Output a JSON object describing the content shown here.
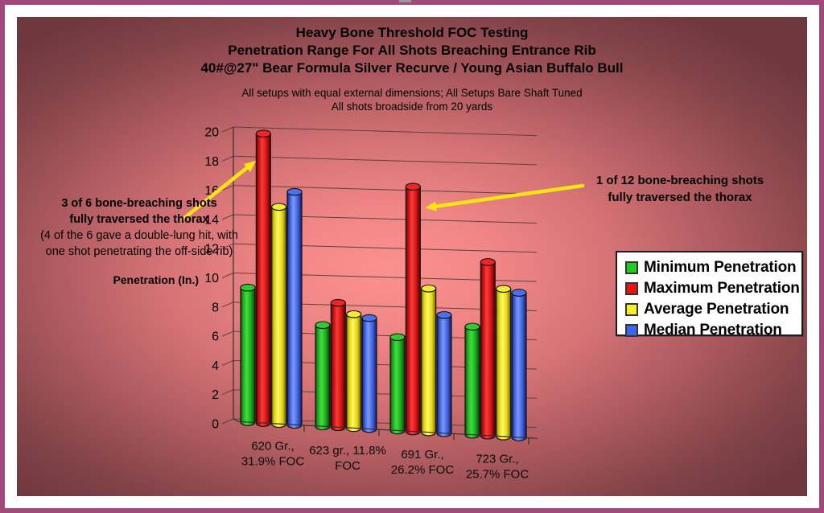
{
  "title": {
    "line1": "Heavy Bone Threshold FOC Testing",
    "line2": "Penetration Range For All Shots Breaching Entrance Rib",
    "line3": "40#@27\" Bear Formula Silver Recurve / Young Asian Buffalo Bull"
  },
  "subtitle": {
    "line1": "All setups with equal external dimensions; All Setups Bare Shaft Tuned",
    "line2": "All shots broadside from 20 yards"
  },
  "annotations": {
    "left": {
      "bold_line1": "3 of 6 bone-breaching shots",
      "bold_line2": "fully traversed the thorax",
      "normal_line1": "(4 of the 6 gave a double-lung hit, with",
      "normal_line2": "one shot penetrating the off-side rib)"
    },
    "right": {
      "line1": "1 of 12 bone-breaching shots",
      "line2": "fully traversed the thorax"
    }
  },
  "colors": {
    "arrow": "#ffe612",
    "frame_border": "#a1497b",
    "background_center": "#fb918f",
    "background_edge": "#6f383e",
    "grid_line": "#5c4242"
  },
  "chart_data": {
    "type": "bar",
    "style": "3d-cylinder",
    "title": "Heavy Bone Threshold FOC Testing",
    "categories": [
      [
        "620 Gr.,",
        "31.9% FOC"
      ],
      [
        "623 gr., 11.8%",
        "FOC"
      ],
      [
        "691 Gr.,",
        "26.2% FOC"
      ],
      [
        "723 Gr.,",
        "25.7% FOC"
      ]
    ],
    "series": [
      {
        "name": "Minimum Penetration",
        "swatch": "#22cc22",
        "values": [
          9.0,
          6.5,
          5.75,
          6.5
        ]
      },
      {
        "name": "Maximum Penetration",
        "swatch": "#ee1111",
        "values": [
          19.5,
          8.0,
          15.75,
          10.75
        ]
      },
      {
        "name": "Average Penetration",
        "swatch": "#f6ee2a",
        "values": [
          14.5,
          7.25,
          9.0,
          9.0
        ]
      },
      {
        "name": "Median Penetration",
        "swatch": "#3a66ee",
        "values": [
          15.5,
          7.0,
          7.25,
          8.75
        ]
      }
    ],
    "xlabel": "",
    "ylabel": "Penetration (In.)",
    "ylim": [
      0,
      20
    ],
    "ytick_step": 2,
    "grid": true,
    "legend_position": "right"
  }
}
